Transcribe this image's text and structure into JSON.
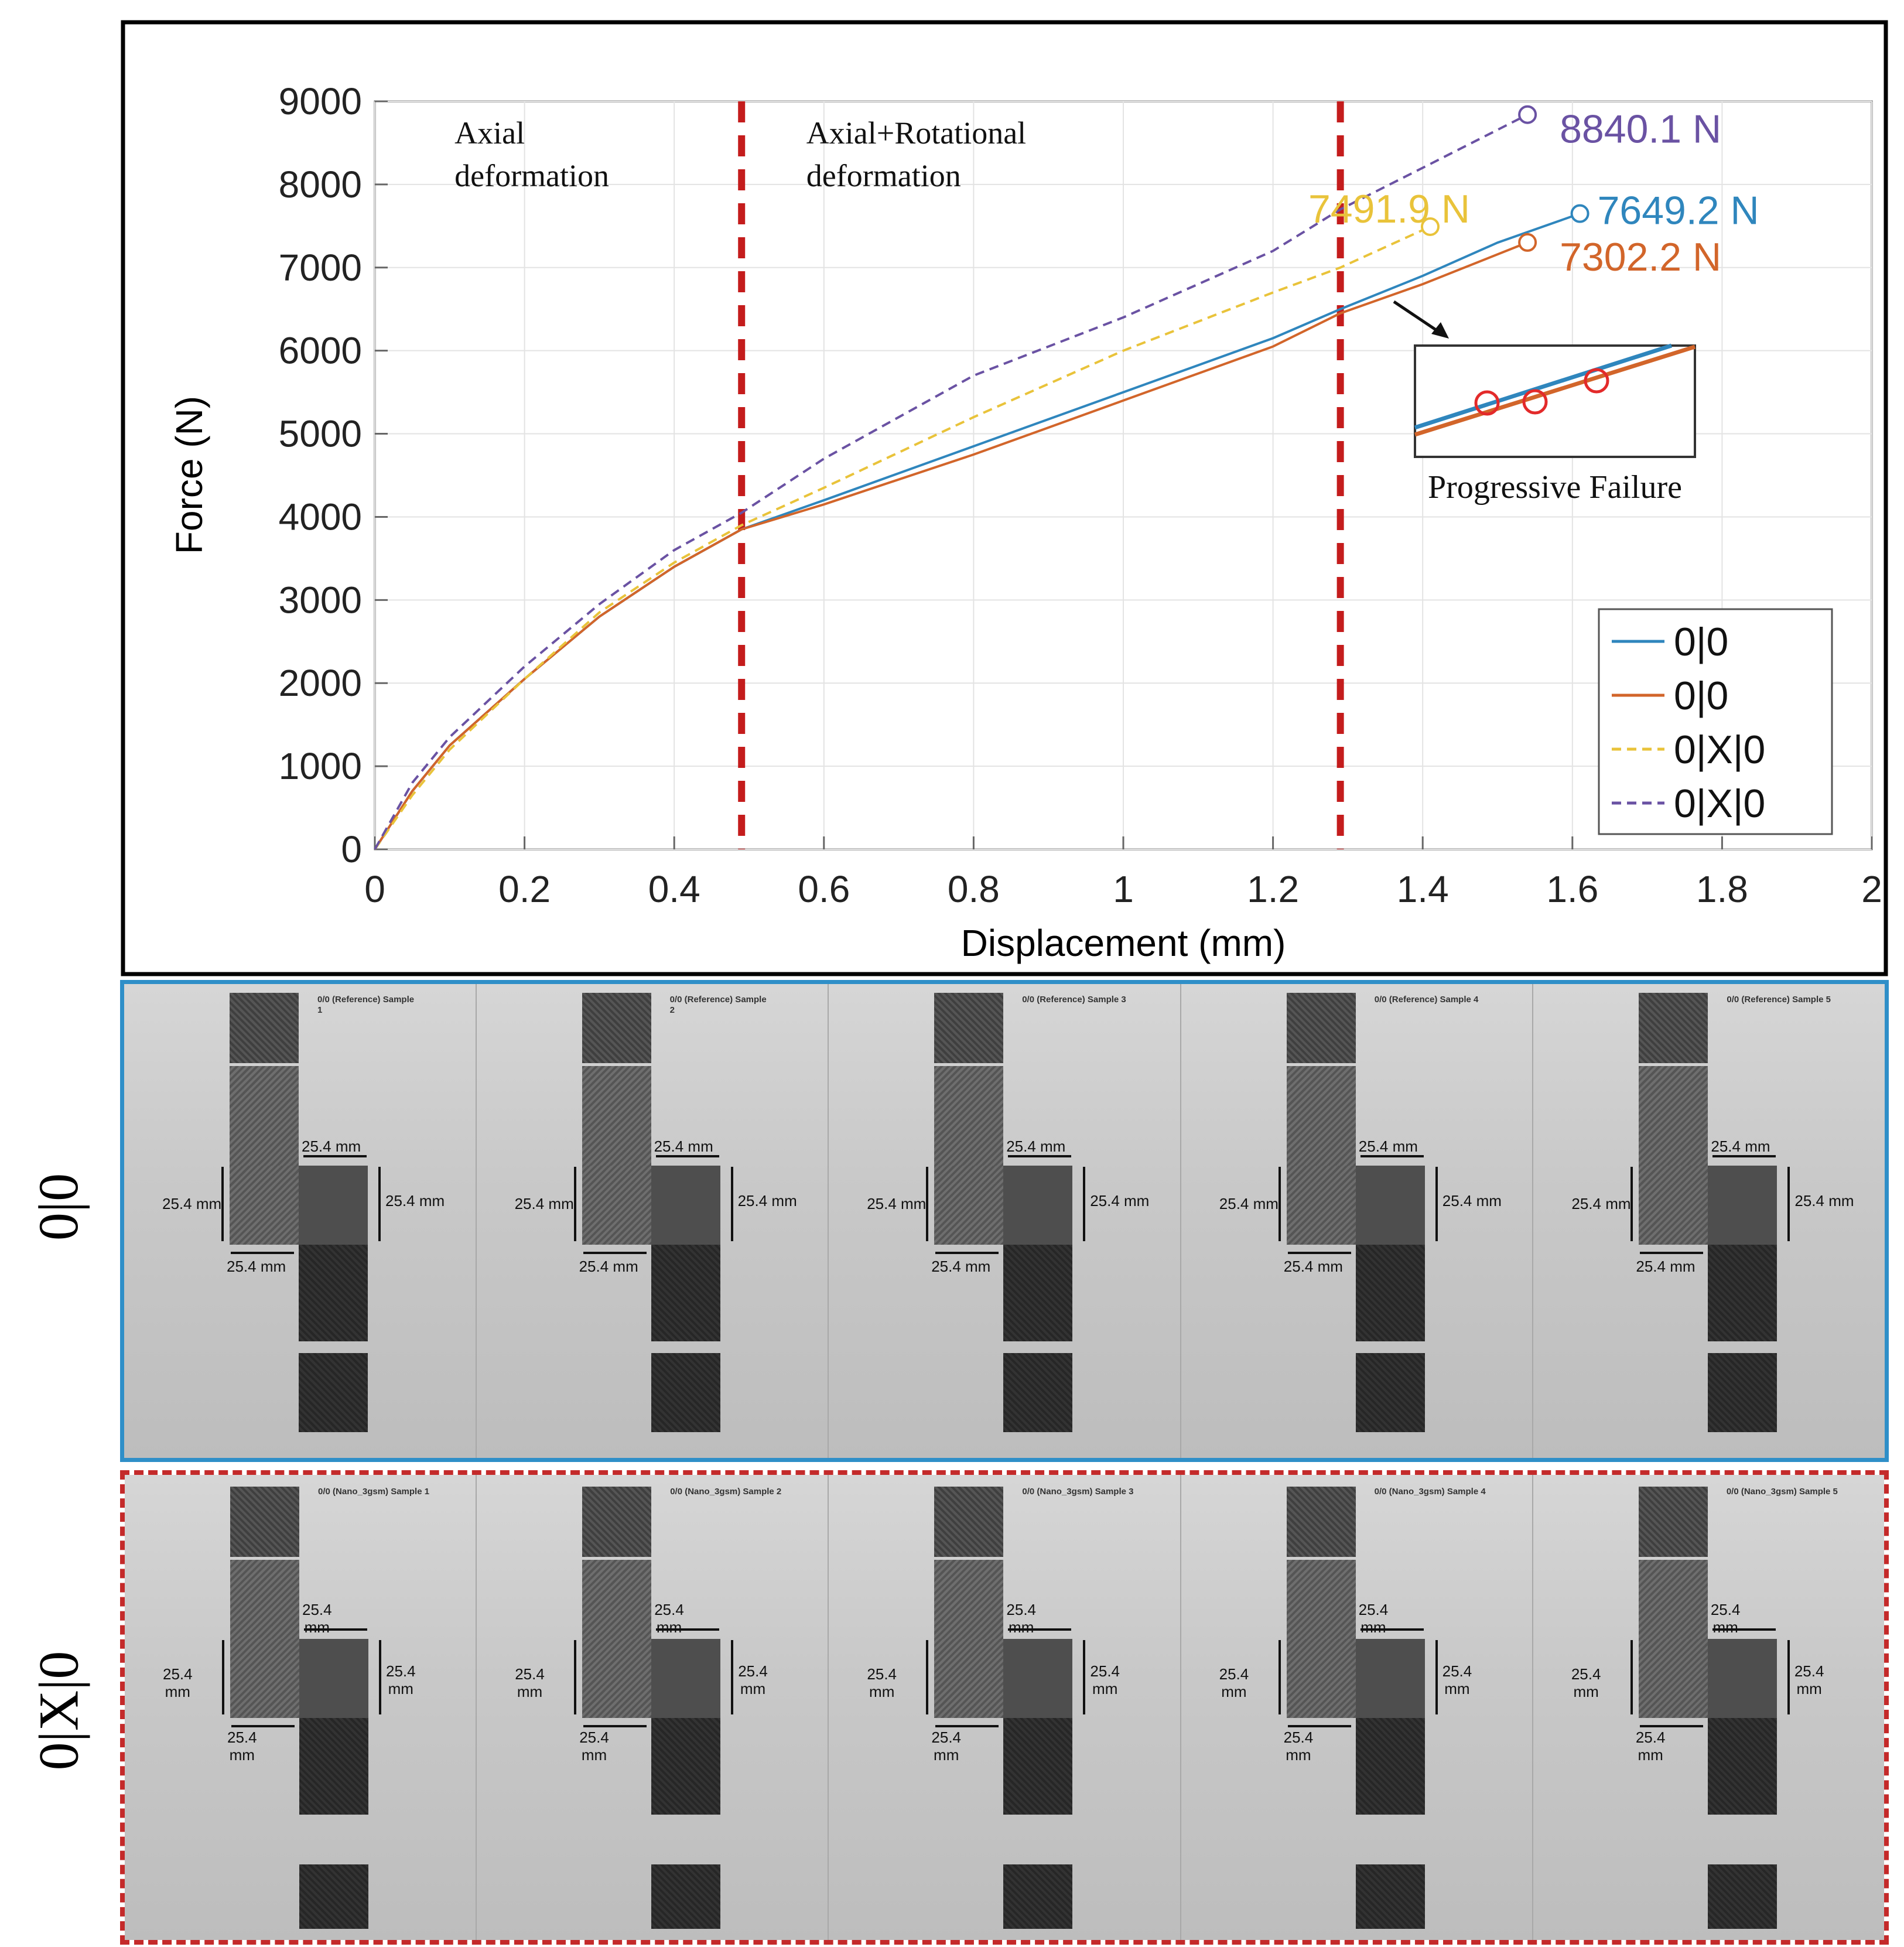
{
  "chart_data": {
    "type": "line",
    "xlabel": "Displacement (mm)",
    "ylabel": "Force (N)",
    "xlim": [
      0,
      2
    ],
    "ylim": [
      0,
      9000
    ],
    "x_ticks": [
      "0",
      "0.2",
      "0.4",
      "0.6",
      "0.8",
      "1",
      "1.2",
      "1.4",
      "1.6",
      "1.8",
      "2"
    ],
    "y_ticks": [
      "0",
      "1000",
      "2000",
      "3000",
      "4000",
      "5000",
      "6000",
      "7000",
      "8000",
      "9000"
    ],
    "grid": true,
    "legend": {
      "position": "bottom-right",
      "entries": [
        "0|0",
        "0|0",
        "0|X|0",
        "0|X|0"
      ]
    },
    "series": [
      {
        "name": "0|0",
        "color": "#2f86bd",
        "dash": "solid",
        "points": [
          [
            0,
            0
          ],
          [
            0.05,
            700
          ],
          [
            0.1,
            1250
          ],
          [
            0.2,
            2050
          ],
          [
            0.3,
            2800
          ],
          [
            0.4,
            3400
          ],
          [
            0.45,
            3650
          ],
          [
            0.49,
            3850
          ],
          [
            0.6,
            4200
          ],
          [
            0.8,
            4850
          ],
          [
            1.0,
            5500
          ],
          [
            1.2,
            6150
          ],
          [
            1.29,
            6500
          ],
          [
            1.4,
            6900
          ],
          [
            1.5,
            7300
          ],
          [
            1.61,
            7649.2
          ]
        ],
        "end_label": "7649.2 N",
        "end_point": [
          1.61,
          7649.2
        ]
      },
      {
        "name": "0|0",
        "color": "#d2652a",
        "dash": "solid",
        "points": [
          [
            0,
            0
          ],
          [
            0.05,
            700
          ],
          [
            0.1,
            1250
          ],
          [
            0.2,
            2050
          ],
          [
            0.3,
            2800
          ],
          [
            0.4,
            3400
          ],
          [
            0.45,
            3650
          ],
          [
            0.49,
            3850
          ],
          [
            0.6,
            4150
          ],
          [
            0.8,
            4750
          ],
          [
            1.0,
            5400
          ],
          [
            1.2,
            6050
          ],
          [
            1.29,
            6450
          ],
          [
            1.4,
            6800
          ],
          [
            1.54,
            7302.2
          ]
        ],
        "end_label": "7302.2 N",
        "end_point": [
          1.54,
          7302.2
        ]
      },
      {
        "name": "0|X|0",
        "color": "#e9c33a",
        "dash": "dashed",
        "points": [
          [
            0,
            0
          ],
          [
            0.05,
            650
          ],
          [
            0.1,
            1200
          ],
          [
            0.2,
            2050
          ],
          [
            0.3,
            2850
          ],
          [
            0.4,
            3450
          ],
          [
            0.45,
            3700
          ],
          [
            0.49,
            3900
          ],
          [
            0.6,
            4350
          ],
          [
            0.8,
            5200
          ],
          [
            1.0,
            6000
          ],
          [
            1.2,
            6700
          ],
          [
            1.29,
            7000
          ],
          [
            1.41,
            7491.9
          ]
        ],
        "end_label": "7491.9 N",
        "end_point": [
          1.41,
          7491.9
        ]
      },
      {
        "name": "0|X|0",
        "color": "#6a52a3",
        "dash": "dashed",
        "points": [
          [
            0,
            0
          ],
          [
            0.05,
            800
          ],
          [
            0.1,
            1350
          ],
          [
            0.2,
            2200
          ],
          [
            0.3,
            2950
          ],
          [
            0.4,
            3600
          ],
          [
            0.49,
            4050
          ],
          [
            0.6,
            4700
          ],
          [
            0.8,
            5700
          ],
          [
            1.0,
            6400
          ],
          [
            1.2,
            7200
          ],
          [
            1.29,
            7700
          ],
          [
            1.4,
            8200
          ],
          [
            1.54,
            8840.1
          ]
        ],
        "end_label": "8840.1 N",
        "end_point": [
          1.54,
          8840.1
        ]
      }
    ],
    "vlines": [
      0.49,
      1.29
    ],
    "regions": [
      {
        "line1": "Axial",
        "line2": "deformation"
      },
      {
        "line1": "Axial+Rotational",
        "line2": "deformation"
      }
    ],
    "inset": {
      "label": "Progressive Failure"
    }
  },
  "panels": {
    "reference": {
      "row_label": "0|0",
      "samples": [
        {
          "title": "0/0 (Reference) Sample\n1"
        },
        {
          "title": "0/0 (Reference) Sample\n2"
        },
        {
          "title": "0/0 (Reference) Sample 3"
        },
        {
          "title": "0/0 (Reference) Sample 4"
        },
        {
          "title": "0/0 (Reference) Sample 5"
        }
      ],
      "dimension": "25.4 mm"
    },
    "nano": {
      "row_label": "0|X|0",
      "samples": [
        {
          "title": "0/0 (Nano_3gsm) Sample 1"
        },
        {
          "title": "0/0 (Nano_3gsm) Sample 2"
        },
        {
          "title": "0/0 (Nano_3gsm) Sample 3"
        },
        {
          "title": "0/0 (Nano_3gsm) Sample 4"
        },
        {
          "title": "0/0 (Nano_3gsm) Sample 5"
        }
      ],
      "dimension": "25.4\nmm"
    }
  }
}
